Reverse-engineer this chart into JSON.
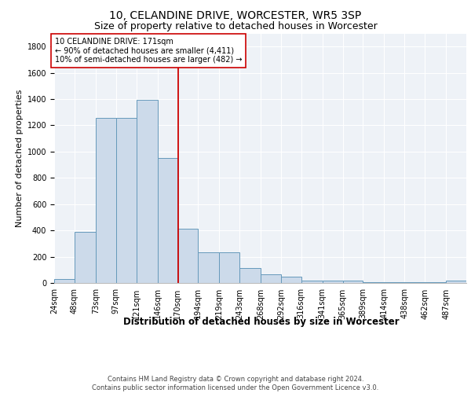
{
  "title1": "10, CELANDINE DRIVE, WORCESTER, WR5 3SP",
  "title2": "Size of property relative to detached houses in Worcester",
  "xlabel": "Distribution of detached houses by size in Worcester",
  "ylabel": "Number of detached properties",
  "bar_color": "#ccdaea",
  "bar_edge_color": "#6699bb",
  "vline_color": "#cc0000",
  "vline_x": 171,
  "annotation_text": "10 CELANDINE DRIVE: 171sqm\n← 90% of detached houses are smaller (4,411)\n10% of semi-detached houses are larger (482) →",
  "annotation_box_color": "#ffffff",
  "annotation_box_edge": "#cc0000",
  "footer_text": "Contains HM Land Registry data © Crown copyright and database right 2024.\nContains public sector information licensed under the Open Government Licence v3.0.",
  "bins": [
    24,
    48,
    73,
    97,
    121,
    146,
    170,
    194,
    219,
    243,
    268,
    292,
    316,
    341,
    365,
    389,
    414,
    438,
    462,
    487,
    511
  ],
  "counts": [
    30,
    390,
    1255,
    1255,
    1395,
    950,
    415,
    235,
    235,
    115,
    68,
    45,
    18,
    18,
    18,
    3,
    3,
    3,
    3,
    18
  ],
  "ylim": [
    0,
    1900
  ],
  "yticks": [
    0,
    200,
    400,
    600,
    800,
    1000,
    1200,
    1400,
    1600,
    1800
  ],
  "background_color": "#eef2f7",
  "title1_fontsize": 10,
  "title2_fontsize": 9,
  "xlabel_fontsize": 8.5,
  "ylabel_fontsize": 8,
  "tick_fontsize": 7,
  "footer_fontsize": 6,
  "ann_fontsize": 7
}
